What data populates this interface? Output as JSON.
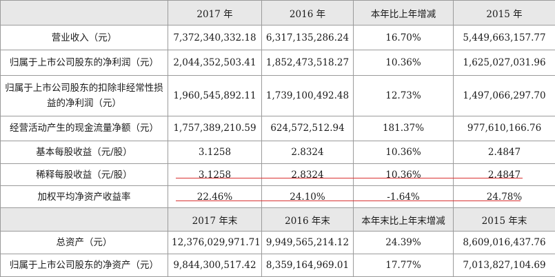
{
  "header_top": [
    "2017 年",
    "2016 年",
    "本年比上年增减",
    "2015 年"
  ],
  "rows_top": [
    {
      "label": "营业收入（元）",
      "values": [
        "7,372,340,332.18",
        "6,317,135,286.24",
        "16.70%",
        "5,449,663,157.77"
      ]
    },
    {
      "label": "归属于上市公司股东的净利润（元）",
      "values": [
        "2,044,352,503.41",
        "1,852,473,518.27",
        "10.36%",
        "1,625,027,031.96"
      ]
    },
    {
      "label": "归属于上市公司股东的扣除非经常性损益的净利润（元）",
      "values": [
        "1,960,545,892.11",
        "1,739,100,492.48",
        "12.73%",
        "1,497,066,297.70"
      ]
    },
    {
      "label": "经营活动产生的现金流量净额（元）",
      "values": [
        "1,757,389,210.59",
        "624,572,512.94",
        "181.37%",
        "977,610,166.76"
      ]
    },
    {
      "label": "基本每股收益（元/股）",
      "values": [
        "3.1258",
        "2.8324",
        "10.36%",
        "2.4847"
      ]
    },
    {
      "label": "稀释每股收益（元/股）",
      "values": [
        "3.1258",
        "2.8324",
        "10.36%",
        "2.4847"
      ]
    },
    {
      "label": "加权平均净资产收益率",
      "values": [
        "22.46%",
        "24.10%",
        "-1.64%",
        "24.78%"
      ]
    }
  ],
  "header_bottom": [
    "2017 年末",
    "2016 年末",
    "本年末比上年末增减",
    "2015 年末"
  ],
  "rows_bottom": [
    {
      "label": "总资产（元）",
      "values": [
        "12,376,029,971.71",
        "9,949,565,214.12",
        "24.39%",
        "8,609,016,437.76"
      ]
    },
    {
      "label": "归属于上市公司股东的净资产（元）",
      "values": [
        "9,844,300,517.42",
        "8,359,164,969.01",
        "17.77%",
        "7,013,827,104.69"
      ]
    }
  ],
  "colors": {
    "header_bg": "#e8e8e8",
    "border": "#9a9a9a",
    "highlight_underline": "#d93030"
  }
}
